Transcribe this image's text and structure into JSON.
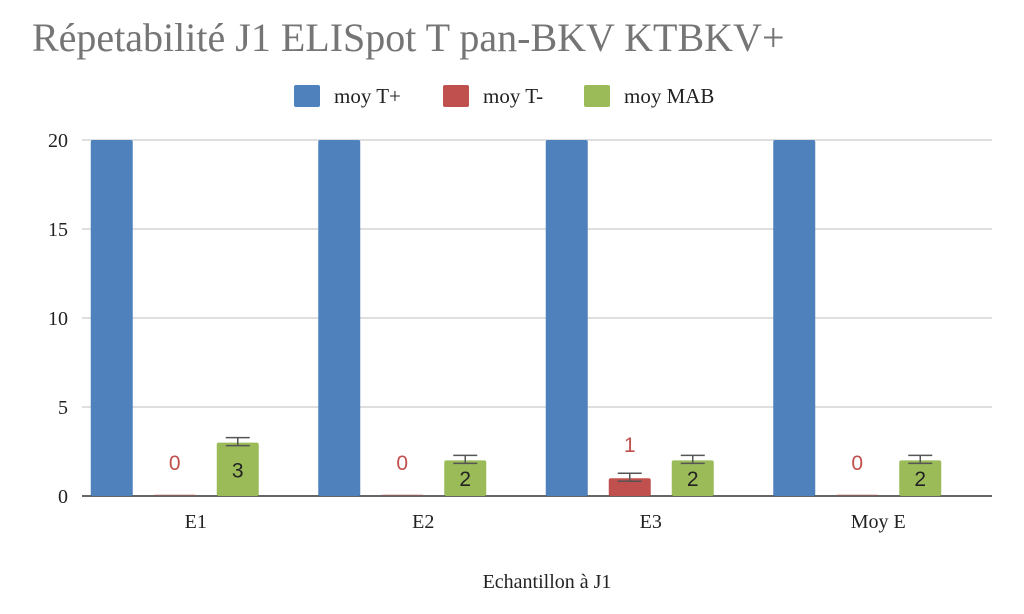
{
  "chart_data": {
    "type": "bar",
    "title": "Répetabilité J1 ELISpot T pan-BKV KTBKV+",
    "xlabel": "Echantillon à J1",
    "ylabel": "",
    "ylim": [
      0,
      20
    ],
    "yticks": [
      0,
      5,
      10,
      15,
      20
    ],
    "grid": true,
    "legend_position": "top",
    "categories": [
      "E1",
      "E2",
      "E3",
      "Moy E"
    ],
    "series": [
      {
        "name": "moy T+",
        "color": "#4f81bd",
        "values": [
          20,
          20,
          20,
          20
        ],
        "data_labels": []
      },
      {
        "name": "moy T-",
        "color": "#c0504d",
        "values": [
          0,
          0,
          1,
          0
        ],
        "data_labels": [
          "0",
          "0",
          "1",
          "0"
        ],
        "label_color": "#c0504d",
        "error_bars": true
      },
      {
        "name": "moy MAB",
        "color": "#9bbb59",
        "values": [
          3,
          2,
          2,
          2
        ],
        "data_labels": [
          "3",
          "2",
          "2",
          "2"
        ],
        "label_color": "#222222",
        "error_bars": true
      }
    ]
  }
}
